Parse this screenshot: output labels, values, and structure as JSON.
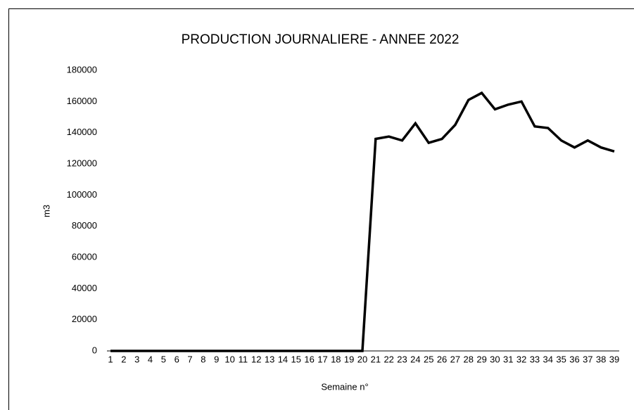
{
  "chart_data": {
    "type": "line",
    "title": "PRODUCTION JOURNALIERE - ANNEE 2022",
    "x_label": "Semaine n°",
    "y_label": "m3",
    "categories": [
      "1",
      "2",
      "3",
      "4",
      "5",
      "6",
      "7",
      "8",
      "9",
      "10",
      "11",
      "12",
      "13",
      "14",
      "15",
      "16",
      "17",
      "18",
      "19",
      "20",
      "21",
      "22",
      "23",
      "24",
      "25",
      "26",
      "27",
      "28",
      "29",
      "30",
      "31",
      "32",
      "33",
      "34",
      "35",
      "36",
      "37",
      "38",
      "39"
    ],
    "series": [
      {
        "name": "m3",
        "color": "#000000",
        "values": [
          0,
          0,
          0,
          0,
          0,
          0,
          0,
          0,
          0,
          0,
          0,
          0,
          0,
          0,
          0,
          0,
          0,
          0,
          0,
          0,
          136000,
          137500,
          135000,
          146000,
          133500,
          136000,
          145000,
          161000,
          165500,
          155000,
          158000,
          160000,
          144000,
          143000,
          135000,
          130500,
          135000,
          130500,
          128000
        ]
      }
    ],
    "ylim": [
      0,
      180000
    ],
    "yticks": [
      0,
      20000,
      40000,
      60000,
      80000,
      100000,
      120000,
      140000,
      160000,
      180000
    ],
    "grid": false
  }
}
